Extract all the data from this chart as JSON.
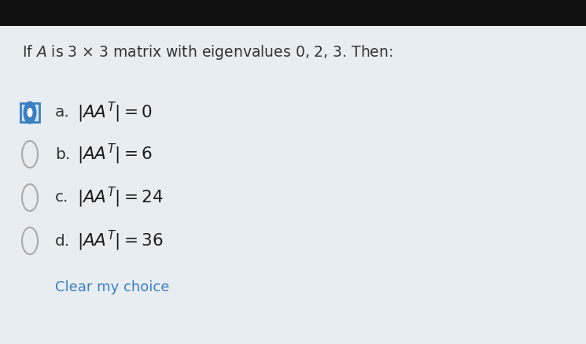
{
  "bg_top": "#111111",
  "bg_main": "#e8edf2",
  "title": "If $\\mathit{A}$ is 3 × 3 matrix with eigenvalues 0, 2, 3. Then:",
  "options": [
    {
      "label": "a.",
      "math": "$|AA^T| = 0$",
      "selected": true
    },
    {
      "label": "b.",
      "math": "$|AA^T| = 6$",
      "selected": false
    },
    {
      "label": "c.",
      "math": "$|AA^T| = 24$",
      "selected": false
    },
    {
      "label": "d.",
      "math": "$|AA^T| = 36$",
      "selected": false
    }
  ],
  "clear_text": "Clear my choice",
  "clear_color": "#3a7fc1",
  "title_fontsize": 13.5,
  "option_fontsize": 14.5,
  "clear_fontsize": 13,
  "selected_fill": "#d6e8f8",
  "selected_border": "#3a7fc1",
  "radio_border": "#aaaaaa",
  "text_color": "#333333"
}
